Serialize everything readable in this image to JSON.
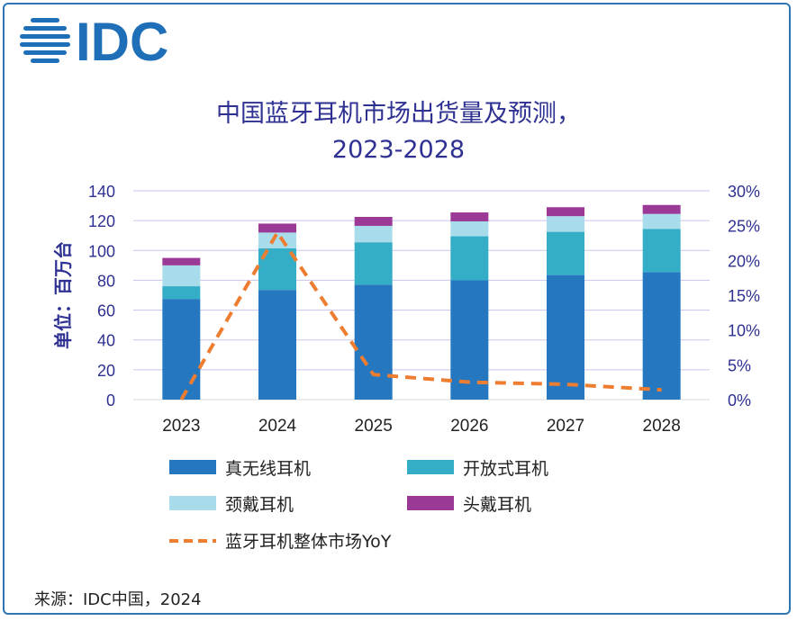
{
  "logo": {
    "text": "IDC",
    "color": "#1f6fb8"
  },
  "title": {
    "line1": "中国蓝牙耳机市场出货量及预测，",
    "line2": "2023-2028"
  },
  "source": "来源：IDC中国，2024",
  "chart_data": {
    "type": "bar",
    "stacked": true,
    "categories": [
      "2023",
      "2024",
      "2025",
      "2026",
      "2027",
      "2028"
    ],
    "ylabel": "单位：百万台",
    "ylim": [
      0,
      140
    ],
    "yticks": [
      "0",
      "20",
      "40",
      "60",
      "80",
      "100",
      "120",
      "140"
    ],
    "y2lim": [
      0,
      30
    ],
    "y2ticks": [
      "0%",
      "5%",
      "10%",
      "15%",
      "20%",
      "25%",
      "30%"
    ],
    "grid": true,
    "legend_position": "bottom",
    "series": [
      {
        "name": "真无线耳机",
        "color": "#2577c0",
        "values": [
          67.5,
          73.5,
          77,
          80,
          83.5,
          85.5
        ]
      },
      {
        "name": "开放式耳机",
        "color": "#34adc7",
        "values": [
          8.5,
          28,
          28.5,
          29.5,
          29,
          29
        ]
      },
      {
        "name": "颈戴耳机",
        "color": "#a8dcea",
        "values": [
          14,
          10.5,
          11,
          10,
          10.5,
          10
        ]
      },
      {
        "name": "头戴耳机",
        "color": "#9b3a96",
        "values": [
          5,
          6,
          6,
          6,
          6,
          6
        ]
      }
    ],
    "line_series": {
      "name": "蓝牙耳机整体市场YoY",
      "color": "#ed7d31",
      "axis": "right",
      "values": [
        0,
        24,
        3.6,
        2.5,
        2.2,
        1.4
      ]
    }
  }
}
